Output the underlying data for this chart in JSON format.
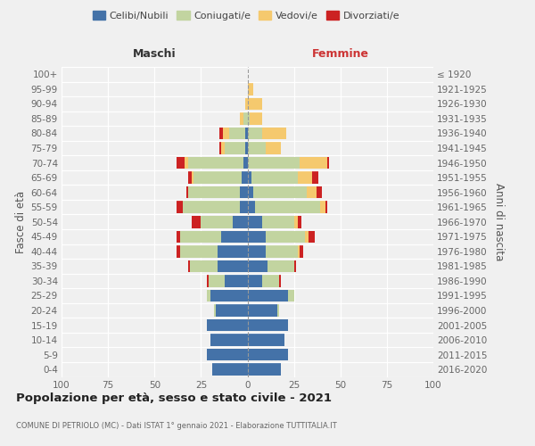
{
  "age_groups": [
    "0-4",
    "5-9",
    "10-14",
    "15-19",
    "20-24",
    "25-29",
    "30-34",
    "35-39",
    "40-44",
    "45-49",
    "50-54",
    "55-59",
    "60-64",
    "65-69",
    "70-74",
    "75-79",
    "80-84",
    "85-89",
    "90-94",
    "95-99",
    "100+"
  ],
  "birth_years": [
    "2016-2020",
    "2011-2015",
    "2006-2010",
    "2001-2005",
    "1996-2000",
    "1991-1995",
    "1986-1990",
    "1981-1985",
    "1976-1980",
    "1971-1975",
    "1966-1970",
    "1961-1965",
    "1956-1960",
    "1951-1955",
    "1946-1950",
    "1941-1945",
    "1936-1940",
    "1931-1935",
    "1926-1930",
    "1921-1925",
    "≤ 1920"
  ],
  "maschi": {
    "celibi": [
      19,
      22,
      20,
      22,
      17,
      20,
      12,
      16,
      16,
      14,
      8,
      4,
      4,
      3,
      2,
      1,
      1,
      0,
      0,
      0,
      0
    ],
    "coniugati": [
      0,
      0,
      0,
      0,
      1,
      2,
      9,
      15,
      20,
      22,
      17,
      31,
      28,
      26,
      30,
      11,
      9,
      2,
      0,
      0,
      0
    ],
    "vedovi": [
      0,
      0,
      0,
      0,
      0,
      0,
      0,
      0,
      0,
      0,
      0,
      0,
      0,
      1,
      2,
      2,
      3,
      2,
      1,
      0,
      0
    ],
    "divorziati": [
      0,
      0,
      0,
      0,
      0,
      0,
      1,
      1,
      2,
      2,
      5,
      3,
      1,
      2,
      4,
      1,
      2,
      0,
      0,
      0,
      0
    ]
  },
  "femmine": {
    "nubili": [
      18,
      22,
      20,
      22,
      16,
      22,
      8,
      11,
      10,
      10,
      8,
      4,
      3,
      2,
      0,
      0,
      0,
      0,
      0,
      0,
      0
    ],
    "coniugate": [
      0,
      0,
      0,
      0,
      1,
      3,
      9,
      14,
      17,
      21,
      17,
      35,
      29,
      25,
      28,
      10,
      8,
      1,
      0,
      0,
      0
    ],
    "vedove": [
      0,
      0,
      0,
      0,
      0,
      0,
      0,
      0,
      1,
      2,
      2,
      3,
      5,
      8,
      15,
      8,
      13,
      7,
      8,
      3,
      0
    ],
    "divorziate": [
      0,
      0,
      0,
      0,
      0,
      0,
      1,
      1,
      2,
      3,
      2,
      1,
      3,
      3,
      1,
      0,
      0,
      0,
      0,
      0,
      0
    ]
  },
  "colors": {
    "celibi": "#4472a8",
    "coniugati": "#c2d4a0",
    "vedovi": "#f5c96e",
    "divorziati": "#cc2222"
  },
  "xlim": [
    -100,
    100
  ],
  "xticks": [
    -100,
    -75,
    -50,
    -25,
    0,
    25,
    50,
    75,
    100
  ],
  "xticklabels": [
    "100",
    "75",
    "50",
    "25",
    "0",
    "25",
    "50",
    "75",
    "100"
  ],
  "title": "Popolazione per età, sesso e stato civile - 2021",
  "subtitle": "COMUNE DI PETRIOLO (MC) - Dati ISTAT 1° gennaio 2021 - Elaborazione TUTTITALIA.IT",
  "ylabel_left": "Fasce di età",
  "ylabel_right": "Anni di nascita",
  "label_maschi": "Maschi",
  "label_femmine": "Femmine",
  "legend_labels": [
    "Celibi/Nubili",
    "Coniugati/e",
    "Vedovi/e",
    "Divorziati/e"
  ],
  "bg_color": "#f0f0f0",
  "grid_color": "#ffffff"
}
